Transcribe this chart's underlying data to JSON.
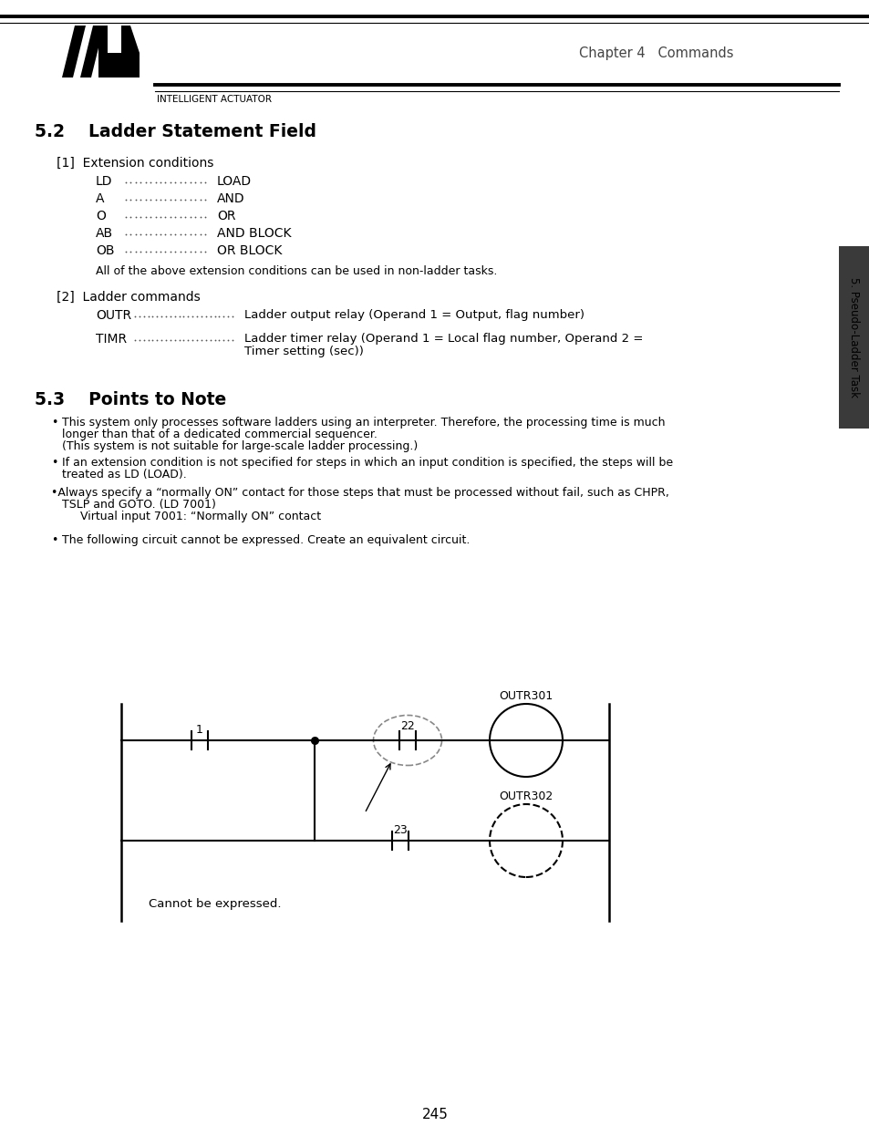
{
  "page_bg": "#ffffff",
  "page_num": "245",
  "chapter_header": "Chapter 4   Commands",
  "sidebar_text": "5. Pseudo-Ladder Task",
  "company_text": "INTELLIGENT ACTUATOR",
  "section_52_title": "5.2    Ladder Statement Field",
  "section_53_title": "5.3    Points to Note",
  "ext_cond_header": "[1]  Extension conditions",
  "ext_items": [
    {
      "cmd": "LD",
      "desc": "LOAD"
    },
    {
      "cmd": "A",
      "desc": "AND"
    },
    {
      "cmd": "O",
      "desc": "OR"
    },
    {
      "cmd": "AB",
      "desc": "AND BLOCK"
    },
    {
      "cmd": "OB",
      "desc": "OR BLOCK"
    }
  ],
  "ext_note": "All of the above extension conditions can be used in non-ladder tasks.",
  "ladder_cmd_header": "[2]  Ladder commands",
  "ladder_items": [
    {
      "cmd": "OUTR",
      "desc1": "Ladder output relay (Operand 1 = Output, flag number)",
      "desc2": ""
    },
    {
      "cmd": "TIMR",
      "desc1": "Ladder timer relay (Operand 1 = Local flag number, Operand 2 =",
      "desc2": "Timer setting (sec))"
    }
  ],
  "bullet1_marker": "•",
  "bullet1_line1": "This system only processes software ladders using an interpreter. Therefore, the processing time is much",
  "bullet1_line2": "longer than that of a dedicated commercial sequencer.",
  "bullet1_line3": "(This system is not suitable for large-scale ladder processing.)",
  "bullet2_marker": "•",
  "bullet2_line1": "If an extension condition is not specified for steps in which an input condition is specified, the steps will be",
  "bullet2_line2": "treated as LD (LOAD).",
  "bullet3_line1": "•Always specify a “normally ON” contact for those steps that must be processed without fail, such as CHPR,",
  "bullet3_line2": "   TSLP and GOTO. (LD 7001)",
  "bullet3_line3": "        Virtual input 7001: “Normally ON” contact",
  "bullet4_marker": "•",
  "bullet4_line1": "The following circuit cannot be expressed. Create an equivalent circuit.",
  "cannot_text": "Cannot be expressed.",
  "label_1": "1",
  "label_22": "22",
  "label_23": "23",
  "label_outr301": "OUTR301",
  "label_outr302": "OUTR302"
}
